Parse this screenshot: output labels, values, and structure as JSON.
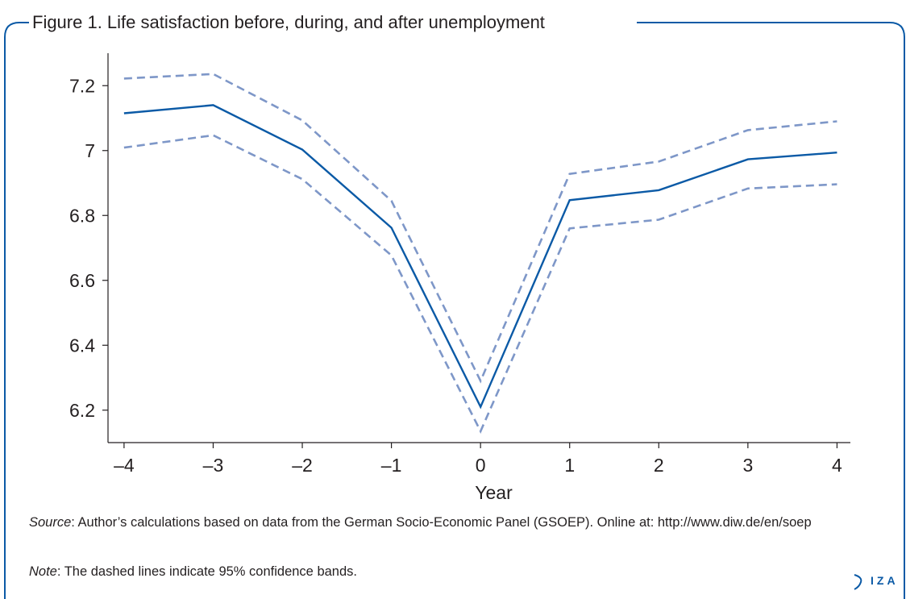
{
  "figure": {
    "title": "Figure 1. Life satisfaction before, during, and after unemployment",
    "border_color": "#0b5aa6"
  },
  "chart_data": {
    "type": "line",
    "title": "",
    "xlabel": "Year",
    "ylabel": "",
    "x": [
      -4,
      -3,
      -2,
      -1,
      0,
      1,
      2,
      3,
      4
    ],
    "x_tick_labels": [
      "–4",
      "–3",
      "–2",
      "–1",
      "0",
      "1",
      "2",
      "3",
      "4"
    ],
    "y_ticks": [
      6.2,
      6.4,
      6.6,
      6.8,
      7.0,
      7.2
    ],
    "y_tick_labels": [
      "6.2",
      "6.4",
      "6.6",
      "6.8",
      "7",
      "7.2"
    ],
    "xlim": [
      -4.18,
      4.15
    ],
    "ylim": [
      6.1,
      7.3
    ],
    "grid": false,
    "series": [
      {
        "role": "estimate",
        "style": "solid",
        "color": "#0b5aa6",
        "values": [
          7.115,
          7.14,
          7.003,
          6.762,
          6.21,
          6.847,
          6.878,
          6.973,
          6.994
        ]
      },
      {
        "role": "upper-95-ci",
        "style": "dashed",
        "color": "#7e97c8",
        "values": [
          7.222,
          7.236,
          7.093,
          6.845,
          6.29,
          6.928,
          6.966,
          7.063,
          7.09
        ]
      },
      {
        "role": "lower-95-ci",
        "style": "dashed",
        "color": "#7e97c8",
        "values": [
          7.009,
          7.047,
          6.912,
          6.677,
          6.135,
          6.76,
          6.787,
          6.883,
          6.896
        ]
      }
    ]
  },
  "source": {
    "label": "Source",
    "text": ": Author’s calculations based on data from the German Socio-Economic Panel (GSOEP). Online at: http://www.diw.de/en/soep"
  },
  "note": {
    "label": "Note",
    "text": ": The dashed lines indicate 95% confidence bands."
  },
  "logo": {
    "text": "IZA"
  }
}
